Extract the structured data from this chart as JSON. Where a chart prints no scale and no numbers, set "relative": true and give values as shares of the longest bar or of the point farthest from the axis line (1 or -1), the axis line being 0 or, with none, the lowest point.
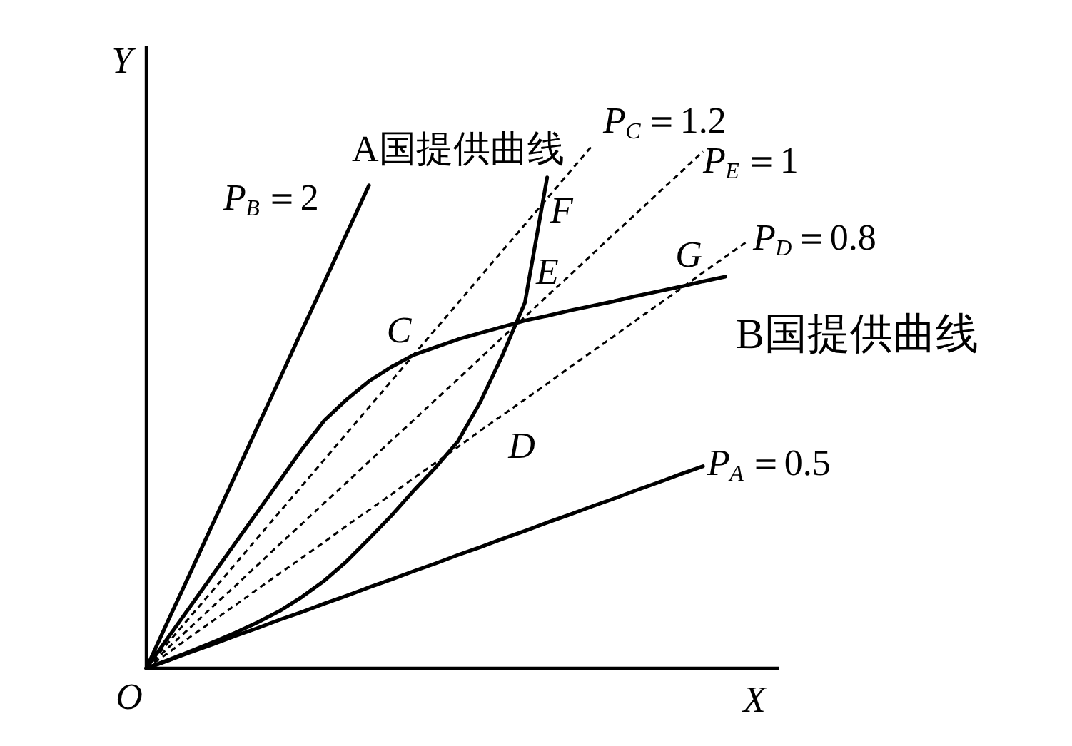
{
  "chart_data": {
    "type": "line",
    "relative": true,
    "xlabel": "X",
    "ylabel": "Y",
    "categories": [
      null,
      null,
      null,
      null,
      null,
      null,
      null,
      null,
      null,
      null,
      null,
      null,
      null,
      null,
      null,
      null,
      null,
      null,
      null,
      null,
      null,
      null,
      null,
      null,
      null,
      null,
      null,
      null
    ],
    "series": [
      {
        "name": "P$_{B}$＝2",
        "color": "#000000",
        "line_style": "solid",
        "values": [
          0,
          0.093,
          0.185,
          0.278,
          0.37,
          0.463,
          0.555,
          0.648,
          0.74,
          0.833,
          0.925,
          null,
          null,
          null,
          null,
          null,
          null,
          null,
          null,
          null,
          null,
          null,
          null,
          null,
          null,
          null,
          null,
          null
        ]
      },
      {
        "name": "P$_{C}$＝1.2",
        "color": "#000000",
        "line_style": "dashed",
        "values": [
          0,
          0.05,
          0.1,
          0.15,
          0.2,
          0.25,
          0.3,
          0.35,
          0.4,
          0.45,
          0.5,
          0.55,
          0.6,
          0.65,
          0.7,
          0.75,
          0.8,
          0.85,
          0.9,
          0.95,
          1,
          null,
          null,
          null,
          null,
          null,
          null,
          null
        ]
      },
      {
        "name": "P$_{E}$＝1",
        "color": "#000000",
        "line_style": "dashed",
        "values": [
          0,
          0.04,
          0.079,
          0.119,
          0.158,
          0.198,
          0.238,
          0.277,
          0.317,
          0.356,
          0.396,
          0.436,
          0.475,
          0.515,
          0.554,
          0.594,
          0.634,
          0.673,
          0.713,
          0.752,
          0.792,
          0.832,
          0.871,
          0.911,
          0.95,
          0.99,
          null,
          null
        ]
      },
      {
        "name": "P$_{D}$＝0.8",
        "color": "#000000",
        "line_style": "dashed",
        "values": [
          0,
          0.03,
          0.061,
          0.091,
          0.121,
          0.152,
          0.182,
          0.212,
          0.242,
          0.273,
          0.303,
          0.333,
          0.364,
          0.394,
          0.424,
          0.455,
          0.485,
          0.515,
          0.545,
          0.576,
          0.606,
          0.636,
          0.667,
          0.697,
          0.727,
          0.758,
          0.788,
          0.818
        ]
      },
      {
        "name": "P$_{A}$＝0.5",
        "color": "#000000",
        "line_style": "solid",
        "values": [
          0,
          0.015,
          0.031,
          0.046,
          0.062,
          0.077,
          0.093,
          0.108,
          0.124,
          0.139,
          0.155,
          0.17,
          0.186,
          0.201,
          0.217,
          0.232,
          0.248,
          0.263,
          0.279,
          0.294,
          0.31,
          0.325,
          0.341,
          0.356,
          0.372,
          0.387,
          null,
          null
        ]
      },
      {
        "name": "A国提供曲线",
        "color": "#000000",
        "line_style": "solid",
        "values": [
          0,
          0.016,
          0.033,
          0.05,
          0.068,
          0.088,
          0.11,
          0.137,
          0.168,
          0.205,
          0.248,
          0.292,
          0.34,
          0.385,
          0.435,
          0.51,
          0.6,
          0.7,
          0.94,
          null,
          null,
          null,
          null,
          null,
          null,
          null,
          null,
          null
        ]
      },
      {
        "name": "B国提供曲线",
        "color": "#000000",
        "line_style": "solid",
        "values": [
          0,
          0.06,
          0.12,
          0.18,
          0.24,
          0.3,
          0.36,
          0.42,
          0.475,
          0.515,
          0.55,
          0.577,
          0.6,
          0.615,
          0.63,
          0.642,
          0.654,
          0.666,
          0.675,
          0.685,
          0.694,
          0.703,
          0.713,
          0.722,
          0.731,
          0.741,
          0.75,
          null
        ]
      }
    ],
    "annotations": [
      "C",
      "D",
      "E",
      "F",
      "G",
      "O"
    ]
  }
}
